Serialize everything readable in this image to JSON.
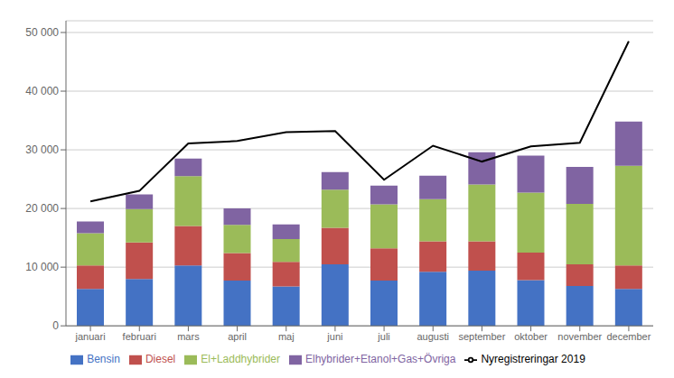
{
  "chart_data": {
    "type": "bar",
    "stacked": true,
    "grid": true,
    "legend": "bottom",
    "categories": [
      "januari",
      "februari",
      "mars",
      "april",
      "maj",
      "juni",
      "juli",
      "augusti",
      "september",
      "oktober",
      "november",
      "december"
    ],
    "series": [
      {
        "name": "Bensin",
        "type": "bar",
        "color": "#4472C4",
        "values": [
          6300,
          8000,
          10300,
          7700,
          6700,
          10500,
          7700,
          9200,
          9400,
          7800,
          6800,
          6300
        ]
      },
      {
        "name": "Diesel",
        "type": "bar",
        "color": "#C0504D",
        "values": [
          4000,
          6200,
          6700,
          4700,
          4200,
          6200,
          5500,
          5200,
          5000,
          4700,
          3700,
          4000
        ]
      },
      {
        "name": "El+Laddhybrider",
        "type": "bar",
        "color": "#9BBB59",
        "values": [
          5500,
          5700,
          8500,
          4800,
          3900,
          6500,
          7500,
          7200,
          9700,
          10200,
          10300,
          17000
        ]
      },
      {
        "name": "Elhybrider+Etanol+Gas+Övriga",
        "type": "bar",
        "color": "#8064A2",
        "values": [
          2000,
          2500,
          3000,
          2800,
          2500,
          3000,
          3200,
          4000,
          5500,
          6300,
          6300,
          7500
        ]
      },
      {
        "name": "Nyregistreringar 2019",
        "type": "line",
        "color": "#000000",
        "values": [
          21200,
          23000,
          31100,
          31500,
          33000,
          33200,
          24900,
          30700,
          28000,
          30600,
          31200,
          48500
        ]
      }
    ],
    "ylim": [
      0,
      52000
    ],
    "yticks": [
      0,
      {
        "value": 10000,
        "label": "10 000"
      },
      {
        "value": 20000,
        "label": "20 000"
      },
      {
        "value": 30000,
        "label": "30 000"
      },
      {
        "value": 40000,
        "label": "40 000"
      },
      {
        "value": 50000,
        "label": "50 000"
      }
    ]
  }
}
